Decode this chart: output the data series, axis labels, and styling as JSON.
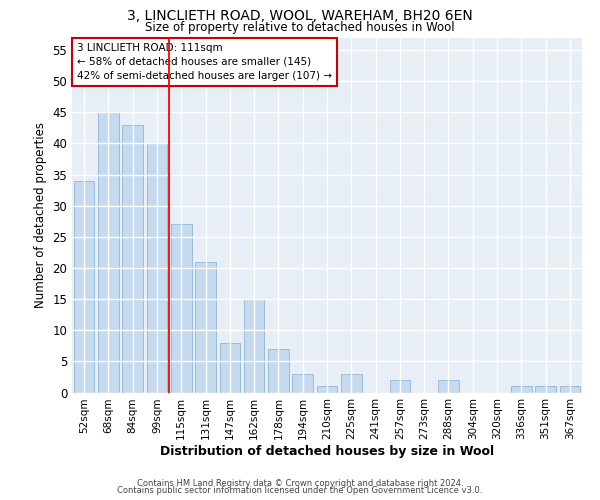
{
  "title1": "3, LINCLIETH ROAD, WOOL, WAREHAM, BH20 6EN",
  "title2": "Size of property relative to detached houses in Wool",
  "xlabel": "Distribution of detached houses by size in Wool",
  "ylabel": "Number of detached properties",
  "categories": [
    "52sqm",
    "68sqm",
    "84sqm",
    "99sqm",
    "115sqm",
    "131sqm",
    "147sqm",
    "162sqm",
    "178sqm",
    "194sqm",
    "210sqm",
    "225sqm",
    "241sqm",
    "257sqm",
    "273sqm",
    "288sqm",
    "304sqm",
    "320sqm",
    "336sqm",
    "351sqm",
    "367sqm"
  ],
  "values": [
    34,
    45,
    43,
    40,
    27,
    21,
    8,
    15,
    7,
    3,
    1,
    3,
    0,
    2,
    0,
    2,
    0,
    0,
    1,
    1,
    1
  ],
  "bar_color": "#c5d9ef",
  "bar_edge_color": "#9bbcd8",
  "fig_bg_color": "#ffffff",
  "ax_bg_color": "#e8eef6",
  "grid_color": "#ffffff",
  "red_line_x": 3.5,
  "annotation_line1": "3 LINCLIETH ROAD: 111sqm",
  "annotation_line2": "← 58% of detached houses are smaller (145)",
  "annotation_line3": "42% of semi-detached houses are larger (107) →",
  "annotation_box_color": "#ffffff",
  "annotation_box_edge": "#cc0000",
  "ylim": [
    0,
    57
  ],
  "yticks": [
    0,
    5,
    10,
    15,
    20,
    25,
    30,
    35,
    40,
    45,
    50,
    55
  ],
  "footer1": "Contains HM Land Registry data © Crown copyright and database right 2024.",
  "footer2": "Contains public sector information licensed under the Open Government Licence v3.0."
}
